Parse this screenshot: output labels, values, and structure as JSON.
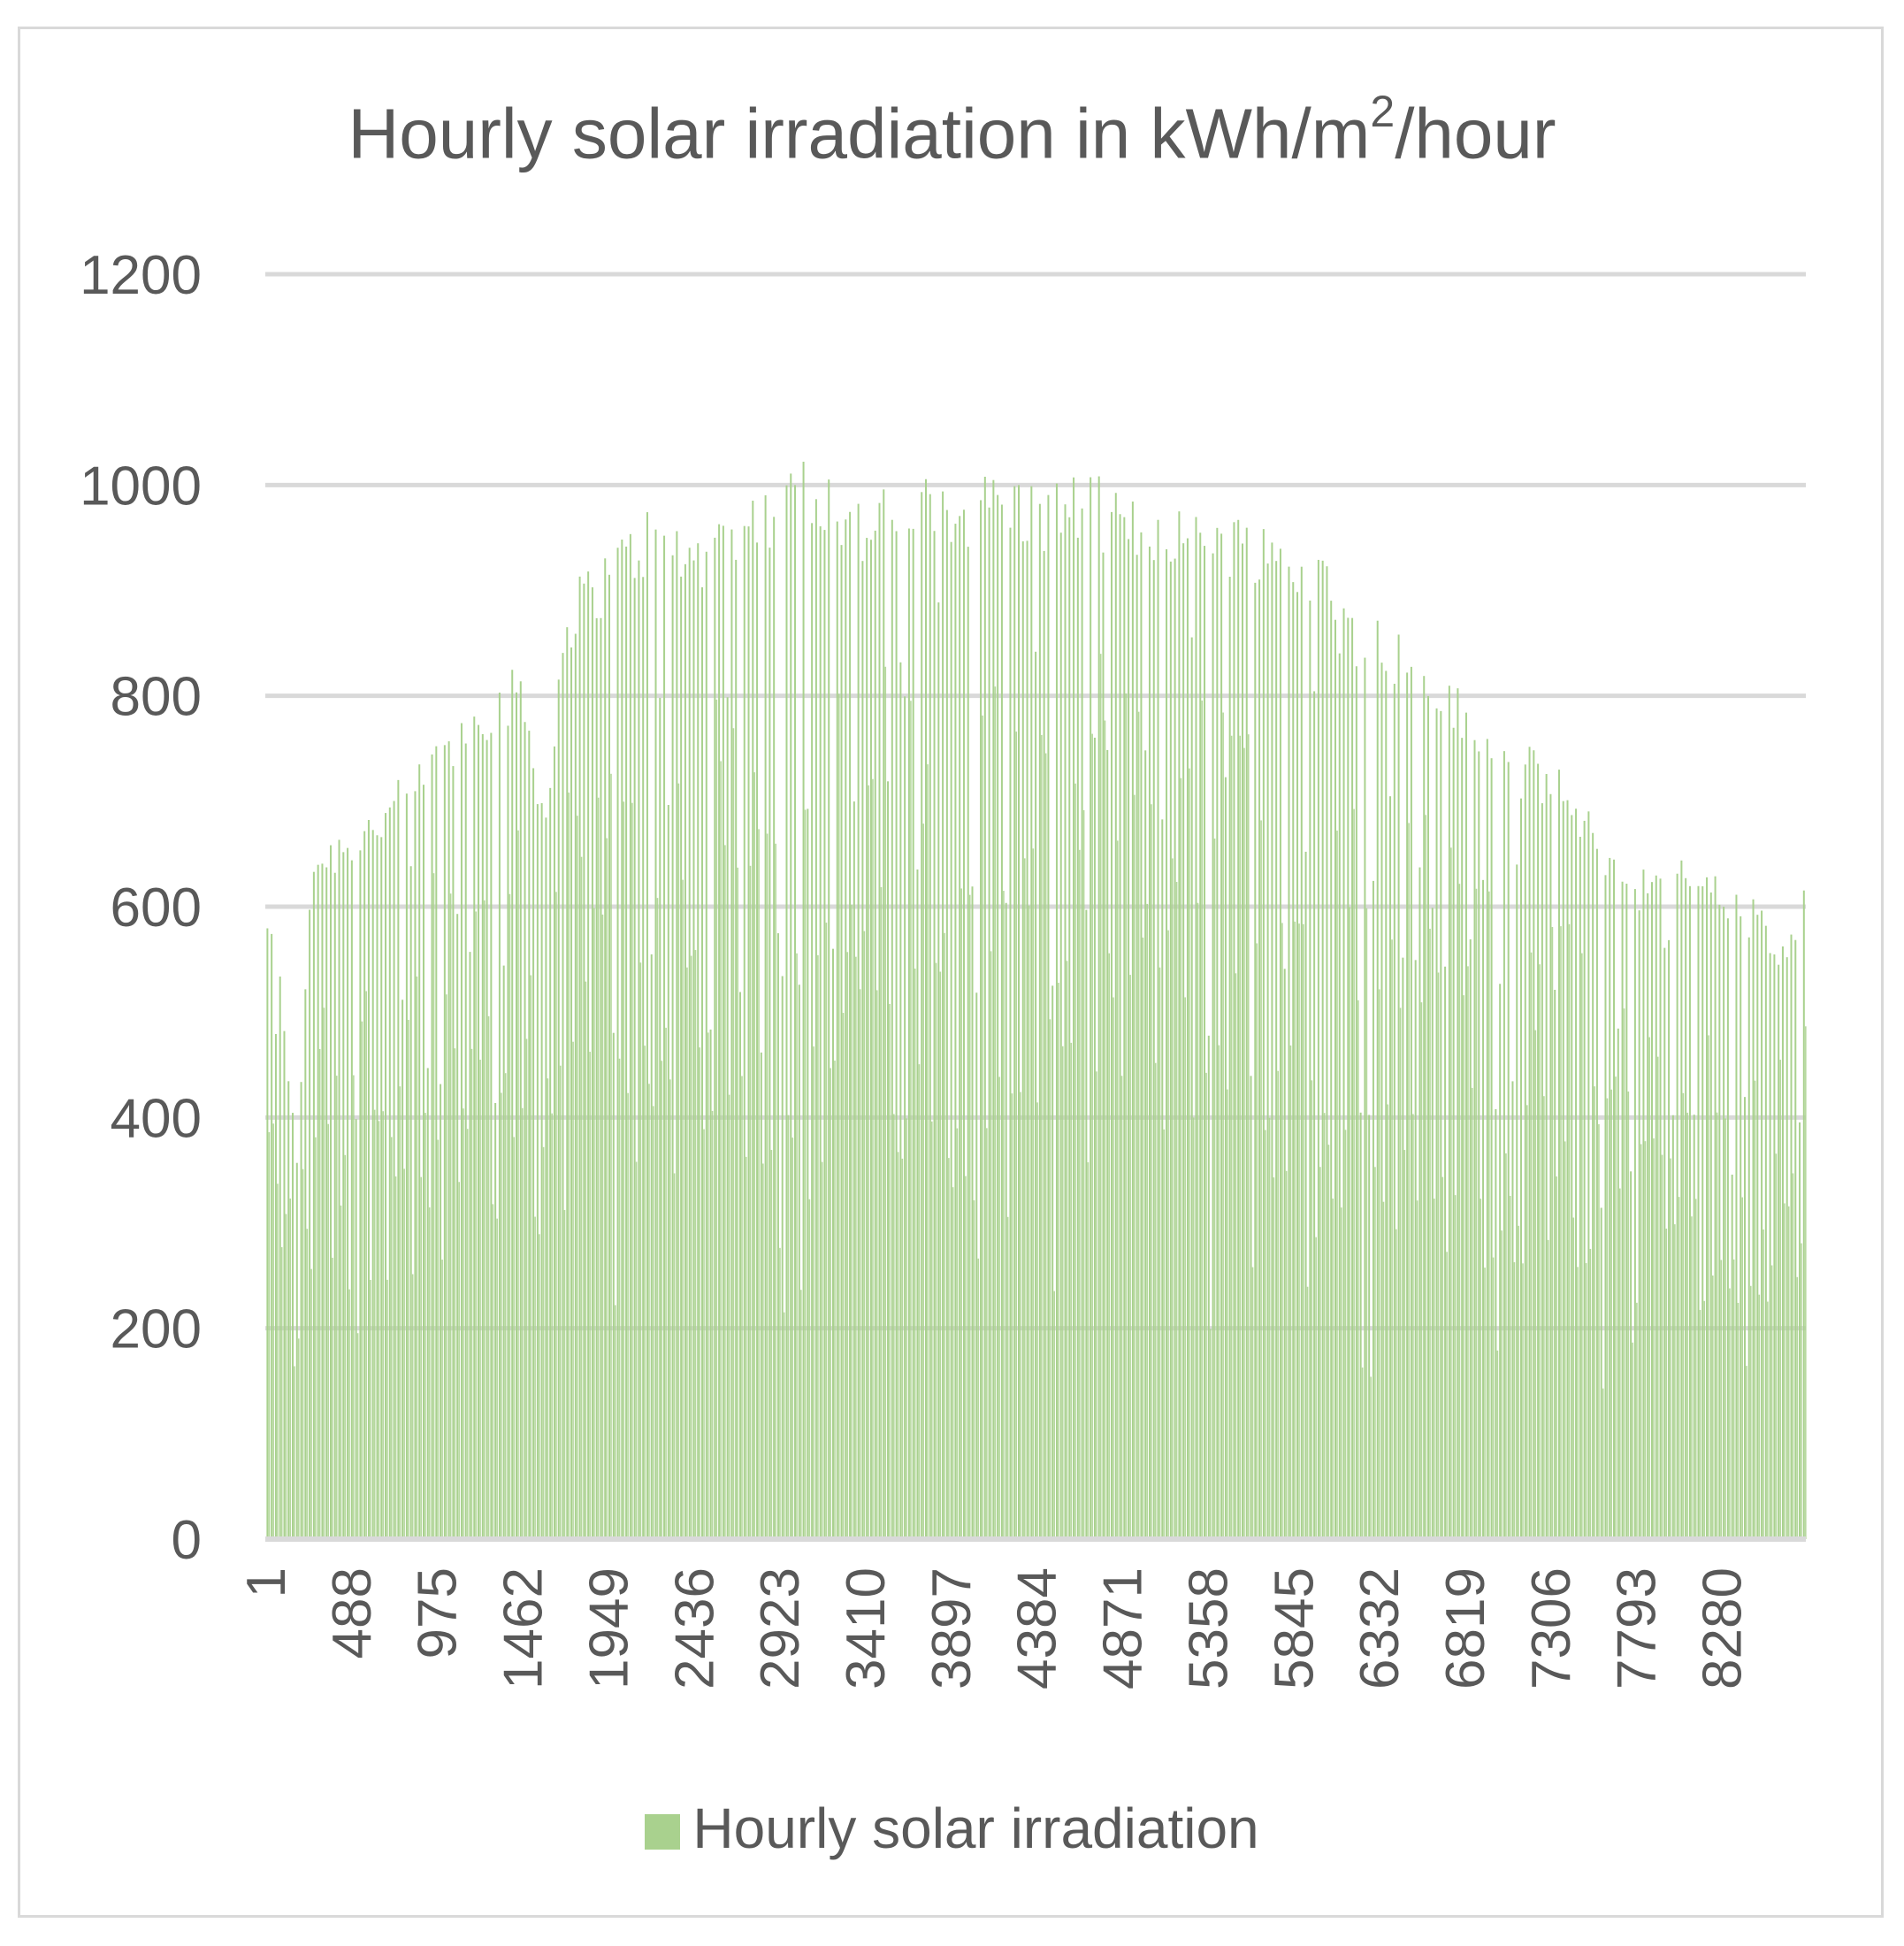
{
  "colors": {
    "bar": "#a9d18e",
    "grid": "#d9d9d9",
    "text": "#595959"
  },
  "chart_data": {
    "type": "bar",
    "title_main": "Hourly solar irradiation in kWh/m",
    "title_sup": "2",
    "title_tail": "/hour",
    "series_name": "Hourly solar irradiation",
    "ylim": [
      0,
      1200
    ],
    "yticks": [
      0,
      200,
      400,
      600,
      800,
      1000,
      1200
    ],
    "xlim": [
      1,
      8760
    ],
    "xticks": [
      1,
      488,
      975,
      1462,
      1949,
      2436,
      2923,
      3410,
      3897,
      4384,
      4871,
      5358,
      5845,
      6332,
      6819,
      7306,
      7793,
      8280
    ],
    "legend_position": "bottom",
    "daily_peak_envelope": [
      {
        "hour": 1,
        "value": 620
      },
      {
        "hour": 100,
        "value": 530
      },
      {
        "hour": 180,
        "value": 360
      },
      {
        "hour": 260,
        "value": 660
      },
      {
        "hour": 488,
        "value": 685
      },
      {
        "hour": 700,
        "value": 710
      },
      {
        "hour": 975,
        "value": 760
      },
      {
        "hour": 1200,
        "value": 810
      },
      {
        "hour": 1462,
        "value": 830
      },
      {
        "hour": 1600,
        "value": 700
      },
      {
        "hour": 1700,
        "value": 900
      },
      {
        "hour": 1949,
        "value": 945
      },
      {
        "hour": 2200,
        "value": 985
      },
      {
        "hour": 2436,
        "value": 960
      },
      {
        "hour": 2700,
        "value": 1000
      },
      {
        "hour": 2923,
        "value": 1000
      },
      {
        "hour": 3080,
        "value": 1040
      },
      {
        "hour": 3410,
        "value": 985
      },
      {
        "hour": 3650,
        "value": 1015
      },
      {
        "hour": 3897,
        "value": 1005
      },
      {
        "hour": 4150,
        "value": 1020
      },
      {
        "hour": 4384,
        "value": 1005
      },
      {
        "hour": 4700,
        "value": 1015
      },
      {
        "hour": 4871,
        "value": 990
      },
      {
        "hour": 5100,
        "value": 995
      },
      {
        "hour": 5358,
        "value": 985
      },
      {
        "hour": 5600,
        "value": 975
      },
      {
        "hour": 5845,
        "value": 955
      },
      {
        "hour": 6000,
        "value": 950
      },
      {
        "hour": 6100,
        "value": 895
      },
      {
        "hour": 6332,
        "value": 880
      },
      {
        "hour": 6550,
        "value": 850
      },
      {
        "hour": 6700,
        "value": 830
      },
      {
        "hour": 6819,
        "value": 800
      },
      {
        "hour": 7050,
        "value": 760
      },
      {
        "hour": 7306,
        "value": 745
      },
      {
        "hour": 7500,
        "value": 700
      },
      {
        "hour": 7650,
        "value": 660
      },
      {
        "hour": 7793,
        "value": 640
      },
      {
        "hour": 8000,
        "value": 650
      },
      {
        "hour": 8150,
        "value": 655
      },
      {
        "hour": 8280,
        "value": 625
      },
      {
        "hour": 8500,
        "value": 605
      },
      {
        "hour": 8650,
        "value": 560
      },
      {
        "hour": 8760,
        "value": 635
      }
    ]
  }
}
